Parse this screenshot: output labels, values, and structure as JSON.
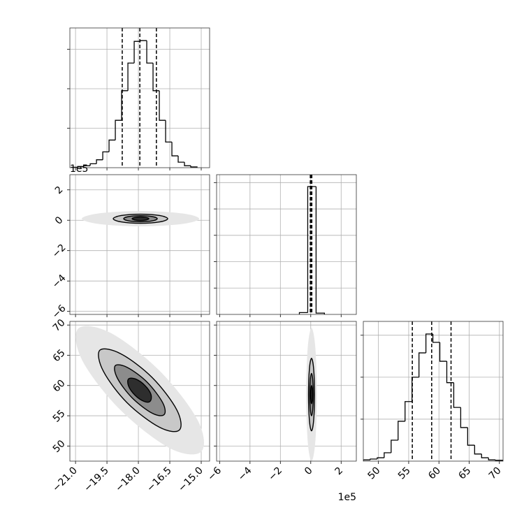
{
  "chart_data": [
    {
      "type": "histogram",
      "bins": [
        -21.2,
        -20.9,
        -20.6,
        -20.3,
        -20.0,
        -19.7,
        -19.4,
        -19.1,
        -18.8,
        -18.5,
        -18.2,
        -17.9,
        -17.6,
        -17.3,
        -17.0,
        -16.7,
        -16.4,
        -16.1,
        -15.8,
        -15.5,
        -15.2
      ],
      "values": [
        0.01,
        0.03,
        0.05,
        0.1,
        0.2,
        0.4,
        0.7,
        1.2,
        1.95,
        2.65,
        3.2,
        3.22,
        2.65,
        1.95,
        1.2,
        0.65,
        0.3,
        0.14,
        0.05,
        0.02
      ],
      "quantiles": [
        -18.77,
        -17.93,
        -17.14
      ],
      "color": "#000000",
      "xlim": [
        -21.27,
        -14.6
      ],
      "ylim": [
        0,
        3.54
      ],
      "xticks": [
        -21,
        -19.5,
        -18,
        -16.5,
        -15
      ],
      "yticks": [
        1,
        2,
        3
      ],
      "xtick_labels": false,
      "ytick_labels": false,
      "grid": true
    },
    {
      "type": "contour",
      "y_offset_label": "1e5",
      "contours": [
        {
          "fill": "#e6e6e6",
          "stroke": "none",
          "x": [
            -15.1,
            -15.92,
            -17.9,
            -19.88,
            -20.7,
            -19.88,
            -17.9,
            -15.92
          ],
          "y": [
            0.1,
            0.45,
            0.6,
            0.45,
            0.1,
            -0.25,
            -0.4,
            -0.25
          ]
        },
        {
          "fill": "#c8c8c8",
          "stroke": "#000000",
          "x": [
            -16.6,
            -16.98,
            -17.9,
            -18.82,
            -19.2,
            -18.82,
            -17.9,
            -16.98
          ],
          "y": [
            0.1,
            0.31,
            0.4,
            0.31,
            0.1,
            -0.11,
            -0.2,
            -0.11
          ]
        },
        {
          "fill": "#8c8c8c",
          "stroke": "#000000",
          "x": [
            -17.1,
            -17.33,
            -17.9,
            -18.47,
            -18.7,
            -18.47,
            -17.9,
            -17.33
          ],
          "y": [
            0.1,
            0.24,
            0.3,
            0.24,
            0.1,
            -0.04,
            -0.1,
            -0.04
          ]
        },
        {
          "fill": "#2e2e2e",
          "stroke": "#000000",
          "x": [
            -17.5,
            -17.62,
            -17.9,
            -18.18,
            -18.3,
            -18.18,
            -17.9,
            -17.62
          ],
          "y": [
            0.1,
            0.18,
            0.22,
            0.18,
            0.1,
            0.02,
            -0.02,
            0.02
          ]
        }
      ],
      "xlim": [
        -21.27,
        -14.6
      ],
      "ylim": [
        -6.2,
        3.0
      ],
      "xticks": [
        -21,
        -19.5,
        -18,
        -16.5,
        -15
      ],
      "yticks": [
        2,
        0,
        {
          "value": -2,
          "label": "−2"
        },
        {
          "value": -4,
          "label": "−4"
        },
        {
          "value": -6,
          "label": "−6"
        }
      ],
      "xtick_labels": false,
      "ytick_labels": true,
      "grid": true
    },
    {
      "type": "histogram",
      "bins": [
        -0.75,
        -0.2,
        0.35,
        0.9
      ],
      "values": [
        0.07,
        4.85,
        0.05
      ],
      "quantiles": [
        -0.03,
        0.02,
        0.07
      ],
      "color": "#000000",
      "xlim": [
        -6.2,
        3.0
      ],
      "ylim": [
        0,
        5.3
      ],
      "xticks": [
        -6,
        -4,
        -2,
        0,
        2
      ],
      "yticks": [
        1,
        2,
        3,
        4,
        5
      ],
      "xtick_labels": false,
      "ytick_labels": false,
      "grid": true
    },
    {
      "type": "contour",
      "contours": [
        {
          "fill": "#e6e6e6",
          "stroke": "none",
          "x": [
            -15.0,
            -15.17,
            -17.0,
            -19.34,
            -20.87,
            -20.67,
            -18.87,
            -16.5
          ],
          "y": [
            49.07,
            54.27,
            62.48,
            68.72,
            69.41,
            64.09,
            56.0,
            49.64
          ]
        },
        {
          "fill": "#c8c8c8",
          "stroke": "#000000",
          "x": [
            -16.04,
            -16.17,
            -17.34,
            -18.84,
            -19.84,
            -19.67,
            -18.54,
            -17.0
          ],
          "y": [
            52.65,
            56.0,
            61.32,
            65.25,
            65.83,
            62.36,
            57.16,
            53.11
          ]
        },
        {
          "fill": "#8c8c8c",
          "stroke": "#000000",
          "x": [
            -16.77,
            -16.84,
            -17.57,
            -18.5,
            -19.1,
            -19.0,
            -18.3,
            -17.34
          ],
          "y": [
            55.19,
            57.16,
            60.51,
            62.94,
            63.29,
            61.2,
            57.97,
            55.42
          ]
        },
        {
          "fill": "#2e2e2e",
          "stroke": "#000000",
          "x": [
            -17.44,
            -17.4,
            -17.7,
            -18.14,
            -18.47,
            -18.47,
            -18.17,
            -17.74
          ],
          "y": [
            57.39,
            58.55,
            60.05,
            61.09,
            61.09,
            59.93,
            58.43,
            57.39
          ]
        }
      ],
      "xlim": [
        -21.27,
        -14.6
      ],
      "ylim": [
        47.5,
        70.6
      ],
      "xticks": [
        {
          "value": -21,
          "label": "−21.0"
        },
        {
          "value": -19.5,
          "label": "−19.5"
        },
        {
          "value": -18,
          "label": "−18.0"
        },
        {
          "value": -16.5,
          "label": "−16.5"
        },
        {
          "value": -15,
          "label": "−15.0"
        }
      ],
      "yticks": [
        50,
        55,
        60,
        65,
        70
      ],
      "xtick_labels": true,
      "ytick_labels": true,
      "grid": true
    },
    {
      "type": "contour",
      "x_offset_label": "1e5",
      "contours": [
        {
          "fill": "#e6e6e6",
          "stroke": "none",
          "x": [
            0.4,
            0.3,
            0.05,
            -0.2,
            -0.3,
            -0.2,
            0.05,
            0.3
          ],
          "y": [
            58.5,
            66.28,
            69.5,
            66.28,
            58.5,
            50.72,
            47.5,
            50.72
          ]
        },
        {
          "fill": "#c8c8c8",
          "stroke": "#000000",
          "x": [
            0.25,
            0.19,
            0.05,
            -0.09,
            -0.15,
            -0.09,
            0.05,
            0.19
          ],
          "y": [
            58.5,
            62.74,
            64.5,
            62.74,
            58.5,
            54.26,
            52.5,
            54.26
          ]
        },
        {
          "fill": "#8c8c8c",
          "stroke": "#000000",
          "x": [
            0.17,
            0.13,
            0.05,
            -0.03,
            -0.07,
            -0.03,
            0.05,
            0.13
          ],
          "y": [
            58.5,
            60.97,
            62.0,
            60.97,
            58.5,
            56.03,
            55.0,
            56.03
          ]
        },
        {
          "fill": "#2e2e2e",
          "stroke": "#000000",
          "x": [
            0.11,
            0.09,
            0.05,
            0.01,
            -0.01,
            0.01,
            0.05,
            0.09
          ],
          "y": [
            58.5,
            59.56,
            60.0,
            59.56,
            58.5,
            57.44,
            57.0,
            57.44
          ]
        }
      ],
      "xlim": [
        -6.2,
        3.0
      ],
      "ylim": [
        47.5,
        70.6
      ],
      "xticks": [
        {
          "value": -6,
          "label": "−6"
        },
        {
          "value": -4,
          "label": "−4"
        },
        {
          "value": -2,
          "label": "−2"
        },
        0,
        2
      ],
      "yticks": [
        50,
        55,
        60,
        65,
        70
      ],
      "xtick_labels": true,
      "ytick_labels": false,
      "grid": true
    },
    {
      "type": "histogram",
      "bins": [
        47.5,
        48.65,
        49.8,
        50.95,
        52.1,
        53.25,
        54.4,
        55.55,
        56.7,
        57.85,
        59.0,
        60.15,
        61.3,
        62.45,
        63.6,
        64.75,
        65.9,
        67.05,
        68.2,
        69.35,
        70.5
      ],
      "values": [
        0.03,
        0.05,
        0.08,
        0.2,
        0.5,
        0.95,
        1.42,
        2.0,
        2.58,
        3.03,
        2.83,
        2.38,
        1.87,
        1.28,
        0.8,
        0.38,
        0.17,
        0.08,
        0.03,
        0.02
      ],
      "quantiles": [
        55.6,
        58.8,
        62.0
      ],
      "color": "#000000",
      "xlim": [
        47.5,
        70.6
      ],
      "ylim": [
        0,
        3.33
      ],
      "xticks": [
        50,
        55,
        60,
        65,
        70
      ],
      "yticks": [
        1,
        2,
        3
      ],
      "xtick_labels": true,
      "ytick_labels": false,
      "grid": true
    }
  ]
}
